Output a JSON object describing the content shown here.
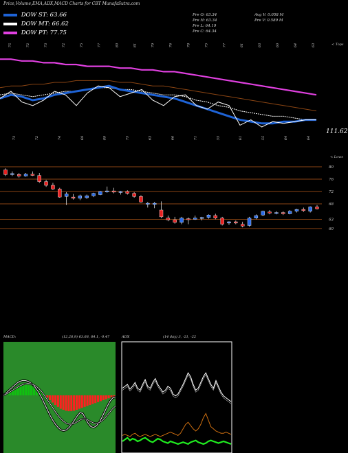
{
  "header": {
    "title": "Price,Volume,EMA,ADX,MACD Charts for CBT MunafaSutra.com"
  },
  "legend": [
    {
      "label": "DOW ST: 63.66",
      "color": "#1e63d6"
    },
    {
      "label": "DOW MT: 66.62",
      "color": "#ffffff"
    },
    {
      "label": "DOW PT: 77.75",
      "color": "#e040e0"
    }
  ],
  "stats": {
    "open": "Pre O: 63.34",
    "high": "Pre H: 63.34",
    "low": "Pre L: 64.19",
    "close": "Pre C: 64.34",
    "avg_vol": "Avg V: 0.058 M",
    "vol": "Pre V: 0.589 M"
  },
  "colors": {
    "pt": "#e040e0",
    "mt": "#ffffff",
    "st": "#1e63d6",
    "lt": "#8b4513",
    "up": "#2a6be8",
    "down": "#e62020",
    "grid": "#8b4513",
    "macd_fill": "#2a8a2a",
    "hist_pos": "#10c010",
    "hist_neg": "#ff2020",
    "adx_green": "#20ee20",
    "adx_orange": "#d07010"
  },
  "chart_data": [
    {
      "type": "line",
      "name": "ema",
      "price_label": "111.62",
      "corner_label": "< Tops",
      "top_ticks": [
        "75",
        "72",
        "73",
        "72",
        "75",
        "77",
        "80",
        "81",
        "79",
        "76",
        "78",
        "75",
        "77",
        "61",
        "63",
        "60",
        "64",
        "63"
      ],
      "bottom_ticks": [
        "73",
        "72",
        "74",
        "69",
        "89",
        "75",
        "63",
        "66",
        "71",
        "55",
        "61",
        "55",
        "64",
        "64"
      ],
      "series": [
        {
          "key": "pt",
          "values": [
            98,
            98,
            97,
            97,
            96,
            96,
            95,
            95,
            94,
            94,
            94,
            93,
            93,
            92,
            92,
            91,
            91,
            90,
            89,
            88,
            87,
            86,
            85,
            84,
            83,
            82,
            81,
            80,
            79,
            78
          ]
        },
        {
          "key": "lt",
          "values": [
            82,
            83,
            83,
            84,
            84,
            85,
            85,
            86,
            86,
            86,
            86,
            85,
            85,
            84,
            83,
            83,
            82,
            81,
            80,
            79,
            78,
            77,
            76,
            75,
            74,
            73,
            72,
            71,
            70,
            69
          ]
        },
        {
          "key": "mt",
          "values": [
            78,
            79,
            78,
            77,
            78,
            79,
            80,
            80,
            81,
            82,
            82,
            81,
            81,
            80,
            79,
            78,
            78,
            77,
            75,
            74,
            72,
            71,
            69,
            68,
            67,
            66,
            66,
            65,
            64,
            64
          ]
        },
        {
          "key": "st",
          "values": [
            76,
            78,
            77,
            75,
            76,
            78,
            79,
            80,
            81,
            82,
            83,
            81,
            80,
            79,
            78,
            77,
            76,
            74,
            72,
            70,
            68,
            66,
            64,
            63,
            62,
            62,
            63,
            63,
            64,
            64
          ]
        },
        {
          "key": "close",
          "values": [
            76,
            80,
            74,
            72,
            75,
            80,
            78,
            72,
            79,
            83,
            82,
            77,
            79,
            81,
            75,
            72,
            77,
            78,
            72,
            70,
            74,
            72,
            61,
            64,
            60,
            63,
            62,
            63,
            64,
            64
          ]
        }
      ]
    },
    {
      "type": "candlestick",
      "name": "price",
      "corner_label": "< Lows",
      "y_ticks": [
        80,
        76,
        72,
        68,
        63,
        60
      ],
      "ylim": [
        58,
        82
      ],
      "candles": [
        {
          "o": 79.0,
          "h": 79.5,
          "l": 77.0,
          "c": 77.5
        },
        {
          "o": 77.5,
          "h": 78.5,
          "l": 77.0,
          "c": 77.8
        },
        {
          "o": 77.5,
          "h": 78.0,
          "l": 76.5,
          "c": 77.0
        },
        {
          "o": 77.0,
          "h": 78.0,
          "l": 76.8,
          "c": 77.6
        },
        {
          "o": 77.6,
          "h": 78.5,
          "l": 77.0,
          "c": 77.2
        },
        {
          "o": 77.2,
          "h": 78.0,
          "l": 74.8,
          "c": 75.2
        },
        {
          "o": 75.2,
          "h": 75.8,
          "l": 73.5,
          "c": 74.0
        },
        {
          "o": 74.0,
          "h": 74.8,
          "l": 72.5,
          "c": 72.8
        },
        {
          "o": 72.8,
          "h": 73.2,
          "l": 70.0,
          "c": 70.2
        },
        {
          "o": 70.4,
          "h": 71.8,
          "l": 67.6,
          "c": 71.2
        },
        {
          "o": 70.2,
          "h": 71.2,
          "l": 69.4,
          "c": 69.8
        },
        {
          "o": 69.8,
          "h": 71.0,
          "l": 69.2,
          "c": 70.6
        },
        {
          "o": 70.0,
          "h": 71.0,
          "l": 69.6,
          "c": 70.6
        },
        {
          "o": 70.6,
          "h": 71.6,
          "l": 70.2,
          "c": 71.4
        },
        {
          "o": 71.0,
          "h": 72.2,
          "l": 70.8,
          "c": 72.0
        },
        {
          "o": 72.0,
          "h": 73.6,
          "l": 71.6,
          "c": 72.2
        },
        {
          "o": 72.2,
          "h": 73.2,
          "l": 71.4,
          "c": 71.8
        },
        {
          "o": 71.8,
          "h": 72.2,
          "l": 71.0,
          "c": 72.0
        },
        {
          "o": 72.0,
          "h": 72.4,
          "l": 71.0,
          "c": 71.4
        },
        {
          "o": 71.4,
          "h": 71.8,
          "l": 70.0,
          "c": 70.4
        },
        {
          "o": 70.4,
          "h": 70.8,
          "l": 68.4,
          "c": 68.6
        },
        {
          "o": 68.0,
          "h": 68.6,
          "l": 66.8,
          "c": 68.2
        },
        {
          "o": 67.8,
          "h": 68.6,
          "l": 66.6,
          "c": 68.2
        },
        {
          "o": 66.0,
          "h": 68.8,
          "l": 63.4,
          "c": 63.8
        },
        {
          "o": 63.4,
          "h": 64.2,
          "l": 62.4,
          "c": 62.8
        },
        {
          "o": 62.8,
          "h": 63.8,
          "l": 61.6,
          "c": 62.0
        },
        {
          "o": 62.0,
          "h": 63.8,
          "l": 61.4,
          "c": 63.4
        },
        {
          "o": 63.2,
          "h": 63.6,
          "l": 61.4,
          "c": 63.0
        },
        {
          "o": 63.0,
          "h": 64.2,
          "l": 62.8,
          "c": 63.4
        },
        {
          "o": 63.4,
          "h": 63.8,
          "l": 62.6,
          "c": 63.6
        },
        {
          "o": 63.6,
          "h": 64.6,
          "l": 63.2,
          "c": 64.4
        },
        {
          "o": 64.2,
          "h": 64.8,
          "l": 63.0,
          "c": 63.4
        },
        {
          "o": 63.4,
          "h": 63.8,
          "l": 61.0,
          "c": 61.4
        },
        {
          "o": 61.8,
          "h": 62.4,
          "l": 61.2,
          "c": 62.2
        },
        {
          "o": 62.2,
          "h": 62.6,
          "l": 61.4,
          "c": 61.8
        },
        {
          "o": 61.4,
          "h": 62.2,
          "l": 60.4,
          "c": 60.8
        },
        {
          "o": 61.0,
          "h": 63.8,
          "l": 60.6,
          "c": 63.4
        },
        {
          "o": 63.4,
          "h": 64.6,
          "l": 63.0,
          "c": 64.2
        },
        {
          "o": 64.4,
          "h": 65.8,
          "l": 64.0,
          "c": 65.6
        },
        {
          "o": 65.4,
          "h": 66.0,
          "l": 64.6,
          "c": 65.0
        },
        {
          "o": 65.0,
          "h": 65.6,
          "l": 64.6,
          "c": 65.2
        },
        {
          "o": 65.2,
          "h": 65.6,
          "l": 64.4,
          "c": 64.8
        },
        {
          "o": 64.8,
          "h": 66.0,
          "l": 64.6,
          "c": 65.6
        },
        {
          "o": 65.6,
          "h": 66.4,
          "l": 65.2,
          "c": 66.2
        },
        {
          "o": 66.2,
          "h": 66.8,
          "l": 65.4,
          "c": 65.8
        },
        {
          "o": 65.6,
          "h": 67.2,
          "l": 65.2,
          "c": 67.0
        },
        {
          "o": 67.0,
          "h": 67.6,
          "l": 66.2,
          "c": 66.4
        }
      ]
    },
    {
      "type": "bar",
      "name": "macd",
      "label": "MACD:",
      "values_text": "(12,26,9) 63.68, 64.1, -0.47",
      "histogram": [
        0.2,
        0.5,
        0.9,
        1.2,
        1.5,
        1.8,
        2.0,
        2.1,
        2.2,
        2.1,
        2.0,
        1.8,
        1.5,
        1.0,
        0.5,
        0.0,
        -0.5,
        -1.0,
        -1.5,
        -2.0,
        -2.4,
        -2.8,
        -3.0,
        -3.2,
        -3.3,
        -3.3,
        -3.2,
        -3.0,
        -2.8,
        -2.6,
        -2.4,
        -2.2,
        -2.0,
        -1.8,
        -1.6,
        -1.4,
        -1.2,
        -1.0,
        -0.8,
        -0.6,
        -0.4,
        -0.3
      ],
      "macd_line": [
        0.0,
        0.6,
        1.2,
        1.8,
        2.4,
        3.0,
        3.4,
        3.6,
        3.6,
        3.4,
        3.0,
        2.4,
        1.6,
        0.6,
        -0.6,
        -2.0,
        -3.4,
        -4.8,
        -6.0,
        -7.0,
        -7.8,
        -8.4,
        -8.6,
        -8.4,
        -7.8,
        -7.0,
        -6.0,
        -5.0,
        -4.2,
        -4.4,
        -5.6,
        -6.8,
        -7.6,
        -7.8,
        -7.4,
        -6.6,
        -5.4,
        -4.0,
        -2.6,
        -1.4,
        -0.6,
        -0.4
      ],
      "signal_line": [
        0.0,
        0.3,
        0.7,
        1.1,
        1.5,
        1.9,
        2.3,
        2.6,
        2.8,
        2.9,
        2.8,
        2.6,
        2.2,
        1.6,
        0.9,
        0.0,
        -1.0,
        -2.0,
        -3.0,
        -4.0,
        -4.9,
        -5.7,
        -6.3,
        -6.8,
        -7.0,
        -7.0,
        -6.8,
        -6.4,
        -6.0,
        -5.7,
        -5.7,
        -6.0,
        -6.4,
        -6.7,
        -6.8,
        -6.6,
        -6.2,
        -5.6,
        -4.8,
        -4.0,
        -3.2,
        -2.6
      ]
    },
    {
      "type": "line",
      "name": "adx",
      "label": "ADX",
      "values_text": "(14 day) 3, -21, -22",
      "adx": [
        36,
        38,
        40,
        35,
        38,
        42,
        36,
        34,
        40,
        45,
        38,
        36,
        42,
        46,
        40,
        36,
        32,
        34,
        38,
        36,
        30,
        28,
        30,
        35,
        40,
        46,
        52,
        48,
        40,
        34,
        36,
        42,
        48,
        52,
        46,
        40,
        36,
        44,
        38,
        32,
        28,
        26,
        24,
        22
      ],
      "plus_di": [
        10,
        12,
        14,
        11,
        13,
        12,
        10,
        11,
        13,
        14,
        12,
        10,
        9,
        11,
        13,
        12,
        10,
        9,
        8,
        10,
        9,
        8,
        7,
        8,
        9,
        8,
        7,
        9,
        10,
        11,
        9,
        8,
        7,
        8,
        10,
        11,
        10,
        9,
        8,
        9,
        10,
        9,
        8,
        7
      ],
      "minus_di": [
        6,
        7,
        6,
        5,
        7,
        8,
        6,
        5,
        6,
        7,
        6,
        5,
        6,
        7,
        6,
        5,
        6,
        7,
        8,
        9,
        8,
        7,
        6,
        8,
        12,
        16,
        18,
        15,
        12,
        10,
        12,
        16,
        22,
        26,
        20,
        14,
        12,
        10,
        9,
        8,
        8,
        9,
        8,
        7
      ]
    }
  ]
}
